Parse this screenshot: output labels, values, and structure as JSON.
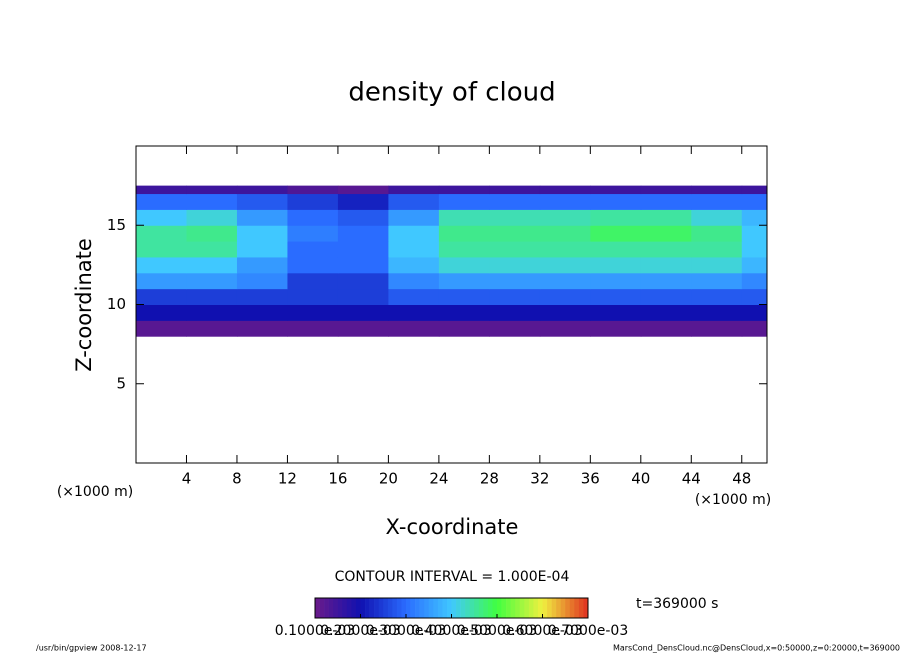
{
  "chart_data": {
    "type": "heatmap",
    "title": "density of cloud",
    "xlabel": "X-coordinate",
    "ylabel": "Z-coordinate",
    "x_unit": "(×1000 m)",
    "y_unit": "(×1000 m)",
    "xlim": [
      0,
      50
    ],
    "ylim": [
      0,
      20
    ],
    "xticks": [
      4,
      8,
      12,
      16,
      20,
      24,
      28,
      32,
      36,
      40,
      44,
      48
    ],
    "yticks": [
      5,
      10,
      15
    ],
    "x_edges": [
      0,
      4,
      8,
      12,
      16,
      20,
      24,
      28,
      32,
      36,
      40,
      44,
      48,
      50
    ],
    "z_edges": [
      8,
      9,
      10,
      11,
      12,
      13,
      14,
      15,
      16,
      17,
      17.5
    ],
    "field": [
      [
        0.00012,
        0.00012,
        0.00012,
        0.00012,
        0.00012,
        0.00012,
        0.00012,
        0.00012,
        0.00012,
        0.00012,
        0.00012,
        0.00012,
        0.00012
      ],
      [
        0.0002,
        0.0002,
        0.0002,
        0.0002,
        0.0002,
        0.0002,
        0.0002,
        0.0002,
        0.0002,
        0.0002,
        0.0002,
        0.0002,
        0.0002
      ],
      [
        0.00025,
        0.00025,
        0.00025,
        0.00025,
        0.00025,
        0.00028,
        0.00028,
        0.00028,
        0.00028,
        0.00028,
        0.00028,
        0.00028,
        0.00028
      ],
      [
        0.00035,
        0.00035,
        0.00033,
        0.00025,
        0.00025,
        0.00033,
        0.00035,
        0.00035,
        0.00035,
        0.00035,
        0.00035,
        0.00035,
        0.00033
      ],
      [
        0.0004,
        0.0004,
        0.00035,
        0.0003,
        0.0003,
        0.00038,
        0.00042,
        0.00042,
        0.00042,
        0.00042,
        0.00042,
        0.00042,
        0.00038
      ],
      [
        0.00045,
        0.00045,
        0.0004,
        0.0003,
        0.0003,
        0.0004,
        0.00045,
        0.00045,
        0.00045,
        0.00045,
        0.00045,
        0.00045,
        0.0004
      ],
      [
        0.00045,
        0.00046,
        0.0004,
        0.00032,
        0.0003,
        0.0004,
        0.00046,
        0.00046,
        0.00046,
        0.00048,
        0.00048,
        0.00046,
        0.0004
      ],
      [
        0.0004,
        0.00042,
        0.00035,
        0.0003,
        0.00028,
        0.00035,
        0.00044,
        0.00044,
        0.00044,
        0.00045,
        0.00045,
        0.00042,
        0.00038
      ],
      [
        0.0003,
        0.0003,
        0.00028,
        0.00025,
        0.00022,
        0.00028,
        0.0003,
        0.0003,
        0.0003,
        0.0003,
        0.0003,
        0.0003,
        0.0003
      ],
      [
        0.00015,
        0.00015,
        0.00015,
        0.00013,
        0.00012,
        0.00015,
        0.00015,
        0.00015,
        0.00015,
        0.00015,
        0.00015,
        0.00015,
        0.00015
      ]
    ],
    "colorbar": {
      "lim": [
        0.0001,
        0.0007
      ],
      "colors": [
        "#6a1a8a",
        "#1010b0",
        "#2a6cff",
        "#40c8ff",
        "#40ff40",
        "#f0f040",
        "#e03020"
      ],
      "ticks": [
        {
          "value": 0.0001,
          "label": "0.1000e-03"
        },
        {
          "value": 0.0002,
          "label": "0.2000e-03"
        },
        {
          "value": 0.0003,
          "label": "0.3000e-03"
        },
        {
          "value": 0.0004,
          "label": "0.4000e-03"
        },
        {
          "value": 0.0005,
          "label": "0.5000e-03"
        },
        {
          "value": 0.0006,
          "label": "0.6000e-03"
        },
        {
          "value": 0.0007,
          "label": "0.7000e-03"
        }
      ]
    },
    "contour_note": "CONTOUR INTERVAL = 1.000E-04",
    "time_label": "t=369000 s",
    "footer_left": "/usr/bin/gpview   2008-12-17",
    "footer_right": "MarsCond_DensCloud.nc@DensCloud,x=0:50000,z=0:20000,t=369000"
  }
}
